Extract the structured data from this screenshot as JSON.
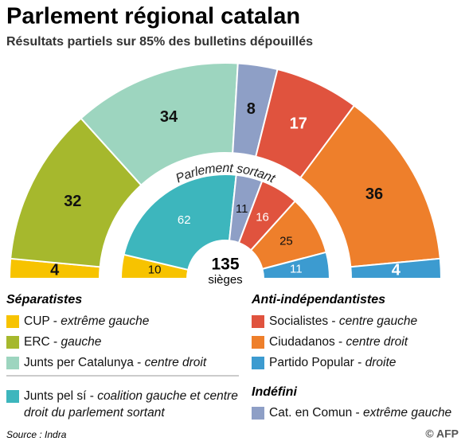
{
  "title": "Parlement régional catalan",
  "subtitle": "Résultats partiels sur 85% des bulletins dépouillés",
  "chart_data": {
    "type": "parliament",
    "inner_label": "Parlement sortant",
    "center_value": 135,
    "center_label": "sièges",
    "groups": [
      {
        "name": "Séparatistes",
        "series": [
          {
            "name": "CUP",
            "description": "extrême gauche",
            "color": "#f7c300",
            "values": [
              4,
              10
            ]
          },
          {
            "name": "ERC",
            "description": "gauche",
            "color": "#a6b82d",
            "values": [
              32,
              null
            ]
          },
          {
            "name": "Junts per Catalunya",
            "description": "centre droit",
            "color": "#9dd5bf",
            "values": [
              34,
              null
            ]
          },
          {
            "name": "Junts pel sí",
            "description": "coalition gauche et centre droit du parlement sortant",
            "color": "#3db6bd",
            "values": [
              null,
              62
            ]
          }
        ]
      },
      {
        "name": "Indéfini",
        "series": [
          {
            "name": "Cat. en Comun",
            "description": "extrême gauche",
            "color": "#8e9fc6",
            "values": [
              8,
              11
            ]
          }
        ]
      },
      {
        "name": "Anti-indépendantistes",
        "series": [
          {
            "name": "Socialistes",
            "description": "centre gauche",
            "color": "#e0533e",
            "values": [
              17,
              16
            ]
          },
          {
            "name": "Ciudadanos",
            "description": "centre droit",
            "color": "#ee7f2b",
            "values": [
              36,
              25
            ]
          },
          {
            "name": "Partido Popular",
            "description": "droite",
            "color": "#3c9bd0",
            "values": [
              4,
              11
            ]
          }
        ]
      }
    ]
  },
  "source": "Source : Indra",
  "credit": "© AFP"
}
